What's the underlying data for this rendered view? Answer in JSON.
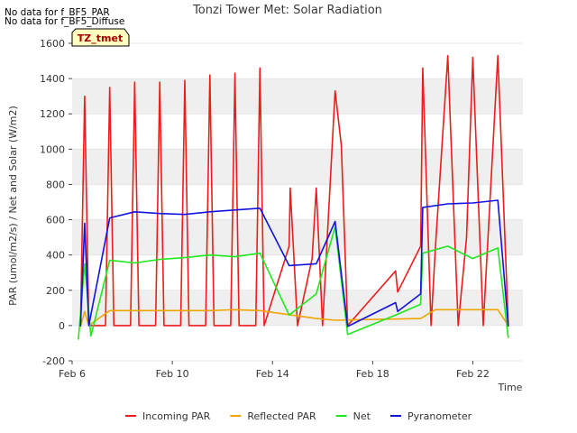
{
  "notes": [
    "No data for f_BF5_PAR",
    "No data for f_BF5_Diffuse"
  ],
  "badge": "TZ_tmet",
  "chart_data": {
    "type": "line",
    "title": "Tonzi Tower Met: Solar Radiation",
    "xlabel": "Time",
    "ylabel": "PAR (umol/m2/s) / Net and Solar (W/m2)",
    "xlim": [
      "2024-02-06",
      "2024-02-24"
    ],
    "ylim": [
      -200,
      1600
    ],
    "xticks": [
      "Feb 6",
      "Feb 10",
      "Feb 14",
      "Feb 18",
      "Feb 22"
    ],
    "yticks": [
      -200,
      0,
      200,
      400,
      600,
      800,
      1000,
      1200,
      1400,
      1600
    ],
    "grid": true,
    "legend_position": "bottom",
    "series": [
      {
        "name": "Incoming PAR",
        "color": "#ee1c1c",
        "points": [
          [
            "2024-02-06 08:00",
            -5
          ],
          [
            "2024-02-06 12:00",
            1300
          ],
          [
            "2024-02-06 16:00",
            0
          ],
          [
            "2024-02-07 08:00",
            0
          ],
          [
            "2024-02-07 12:00",
            1350
          ],
          [
            "2024-02-07 16:00",
            0
          ],
          [
            "2024-02-08 08:00",
            0
          ],
          [
            "2024-02-08 12:00",
            1380
          ],
          [
            "2024-02-08 16:00",
            0
          ],
          [
            "2024-02-09 08:00",
            0
          ],
          [
            "2024-02-09 12:00",
            1380
          ],
          [
            "2024-02-09 16:00",
            0
          ],
          [
            "2024-02-10 08:00",
            0
          ],
          [
            "2024-02-10 12:00",
            1390
          ],
          [
            "2024-02-10 16:00",
            0
          ],
          [
            "2024-02-11 08:00",
            0
          ],
          [
            "2024-02-11 12:00",
            1420
          ],
          [
            "2024-02-11 16:00",
            0
          ],
          [
            "2024-02-12 08:00",
            0
          ],
          [
            "2024-02-12 12:00",
            1430
          ],
          [
            "2024-02-12 16:00",
            0
          ],
          [
            "2024-02-13 08:00",
            0
          ],
          [
            "2024-02-13 12:00",
            1460
          ],
          [
            "2024-02-13 16:00",
            0
          ],
          [
            "2024-02-14 16:00",
            450
          ],
          [
            "2024-02-14 17:00",
            780
          ],
          [
            "2024-02-15 00:00",
            0
          ],
          [
            "2024-02-15 14:00",
            380
          ],
          [
            "2024-02-15 18:00",
            780
          ],
          [
            "2024-02-16 00:00",
            0
          ],
          [
            "2024-02-16 12:00",
            1330
          ],
          [
            "2024-02-16 18:00",
            1020
          ],
          [
            "2024-02-17 00:00",
            0
          ],
          [
            "2024-02-18 22:00",
            310
          ],
          [
            "2024-02-19 00:00",
            190
          ],
          [
            "2024-02-19 22:00",
            450
          ],
          [
            "2024-02-20 00:00",
            1460
          ],
          [
            "2024-02-20 08:00",
            0
          ],
          [
            "2024-02-20 12:00",
            430
          ],
          [
            "2024-02-21 00:00",
            1530
          ],
          [
            "2024-02-21 10:00",
            0
          ],
          [
            "2024-02-21 18:00",
            500
          ],
          [
            "2024-02-22 00:00",
            1520
          ],
          [
            "2024-02-22 10:00",
            0
          ],
          [
            "2024-02-23 00:00",
            1530
          ],
          [
            "2024-02-23 10:00",
            0
          ]
        ]
      },
      {
        "name": "Reflected PAR",
        "color": "#f0a500",
        "points": [
          [
            "2024-02-06 08:00",
            -5
          ],
          [
            "2024-02-06 12:00",
            80
          ],
          [
            "2024-02-06 16:00",
            0
          ],
          [
            "2024-02-07 12:00",
            85
          ],
          [
            "2024-02-08 12:00",
            85
          ],
          [
            "2024-02-09 12:00",
            85
          ],
          [
            "2024-02-10 12:00",
            85
          ],
          [
            "2024-02-11 12:00",
            85
          ],
          [
            "2024-02-12 12:00",
            90
          ],
          [
            "2024-02-13 12:00",
            85
          ],
          [
            "2024-02-15 18:00",
            40
          ],
          [
            "2024-02-16 12:00",
            30
          ],
          [
            "2024-02-19 22:00",
            40
          ],
          [
            "2024-02-20 12:00",
            90
          ],
          [
            "2024-02-21 12:00",
            90
          ],
          [
            "2024-02-22 12:00",
            90
          ],
          [
            "2024-02-23 00:00",
            90
          ],
          [
            "2024-02-23 10:00",
            0
          ]
        ]
      },
      {
        "name": "Net",
        "color": "#1ee81e",
        "points": [
          [
            "2024-02-06 06:00",
            -80
          ],
          [
            "2024-02-06 12:00",
            350
          ],
          [
            "2024-02-06 18:00",
            -60
          ],
          [
            "2024-02-07 12:00",
            370
          ],
          [
            "2024-02-08 12:00",
            355
          ],
          [
            "2024-02-09 12:00",
            375
          ],
          [
            "2024-02-10 12:00",
            385
          ],
          [
            "2024-02-11 12:00",
            400
          ],
          [
            "2024-02-12 12:00",
            390
          ],
          [
            "2024-02-13 12:00",
            410
          ],
          [
            "2024-02-14 16:00",
            60
          ],
          [
            "2024-02-15 18:00",
            180
          ],
          [
            "2024-02-16 12:00",
            560
          ],
          [
            "2024-02-17 00:00",
            -50
          ],
          [
            "2024-02-18 22:00",
            60
          ],
          [
            "2024-02-19 22:00",
            120
          ],
          [
            "2024-02-20 00:00",
            410
          ],
          [
            "2024-02-21 00:00",
            450
          ],
          [
            "2024-02-22 00:00",
            380
          ],
          [
            "2024-02-23 00:00",
            440
          ],
          [
            "2024-02-23 10:00",
            -70
          ]
        ]
      },
      {
        "name": "Pyranometer",
        "color": "#1212e0",
        "points": [
          [
            "2024-02-06 08:00",
            -5
          ],
          [
            "2024-02-06 12:00",
            580
          ],
          [
            "2024-02-06 16:00",
            0
          ],
          [
            "2024-02-07 12:00",
            610
          ],
          [
            "2024-02-08 12:00",
            645
          ],
          [
            "2024-02-09 12:00",
            635
          ],
          [
            "2024-02-10 12:00",
            630
          ],
          [
            "2024-02-11 12:00",
            645
          ],
          [
            "2024-02-12 12:00",
            655
          ],
          [
            "2024-02-13 12:00",
            665
          ],
          [
            "2024-02-14 16:00",
            340
          ],
          [
            "2024-02-15 18:00",
            350
          ],
          [
            "2024-02-16 12:00",
            590
          ],
          [
            "2024-02-17 00:00",
            -5
          ],
          [
            "2024-02-18 22:00",
            130
          ],
          [
            "2024-02-19 00:00",
            80
          ],
          [
            "2024-02-19 22:00",
            180
          ],
          [
            "2024-02-20 00:00",
            670
          ],
          [
            "2024-02-21 00:00",
            690
          ],
          [
            "2024-02-22 00:00",
            695
          ],
          [
            "2024-02-23 00:00",
            710
          ],
          [
            "2024-02-23 10:00",
            -5
          ]
        ]
      }
    ]
  }
}
